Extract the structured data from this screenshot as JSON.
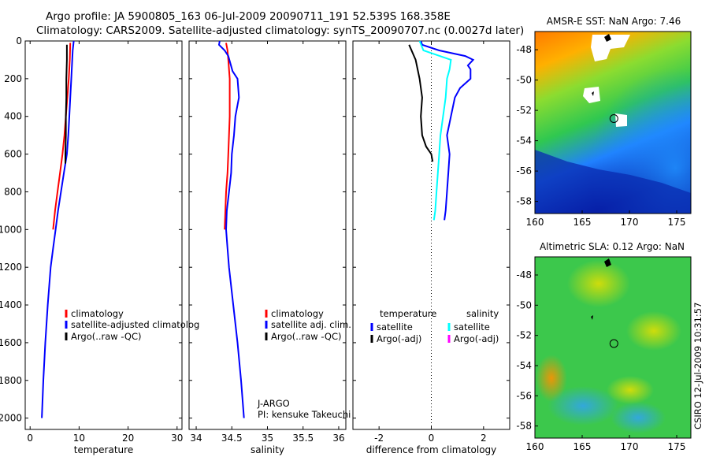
{
  "header": {
    "line1": "Argo profile: JA 5900805_163 06-Jul-2009 20090711_191 52.539S 168.358E",
    "line2": "Climatology: CARS2009. Satellite-adjusted climatology: synTS_20090707.nc (0.0027d later)"
  },
  "colors": {
    "red": "#ff0000",
    "blue": "#0000ff",
    "black": "#000000",
    "cyan": "#00ffff",
    "magenta": "#ff00ff"
  },
  "chart_data": [
    {
      "id": "temperature",
      "type": "line",
      "xlabel": "temperature",
      "ylabel": "",
      "xlim": [
        -1,
        31
      ],
      "ylim": [
        2060,
        0
      ],
      "y_reversed": true,
      "xticks": [
        0,
        10,
        20,
        30
      ],
      "yticks": [
        0,
        200,
        400,
        600,
        800,
        1000,
        1200,
        1400,
        1600,
        1800,
        2000
      ],
      "legend": [
        "climatology",
        "satellite-adjusted climatolog",
        "Argo(..raw -QC)"
      ],
      "legend_colors": [
        "#ff0000",
        "#0000ff",
        "#000000"
      ],
      "series": [
        {
          "name": "climatology",
          "color": "#ff0000",
          "depth": [
            10,
            100,
            200,
            300,
            400,
            500,
            600,
            700,
            800,
            900,
            1000
          ],
          "values": [
            8.2,
            8.1,
            7.9,
            7.6,
            7.3,
            7.0,
            6.6,
            6.1,
            5.6,
            5.1,
            4.7
          ]
        },
        {
          "name": "satellite-adjusted climatolog",
          "color": "#0000ff",
          "depth": [
            0,
            50,
            100,
            200,
            300,
            400,
            500,
            600,
            700,
            800,
            900,
            1000,
            1100,
            1200,
            1400,
            1600,
            1800,
            2000
          ],
          "values": [
            8.9,
            8.7,
            8.6,
            8.4,
            8.2,
            8.0,
            7.8,
            7.5,
            6.9,
            6.3,
            5.7,
            5.2,
            4.7,
            4.2,
            3.6,
            3.1,
            2.7,
            2.4
          ]
        },
        {
          "name": "Argo(..raw -QC)",
          "color": "#000000",
          "depth": [
            20,
            100,
            200,
            300,
            400,
            500,
            600,
            650
          ],
          "values": [
            7.5,
            7.5,
            7.4,
            7.4,
            7.3,
            7.3,
            7.2,
            7.2
          ]
        }
      ]
    },
    {
      "id": "salinity",
      "type": "line",
      "xlabel": "salinity",
      "xlim": [
        33.9,
        36.1
      ],
      "ylim": [
        2060,
        0
      ],
      "y_reversed": true,
      "xticks": [
        34,
        34.5,
        35,
        35.5,
        36
      ],
      "legend": [
        "climatology",
        "satellite adj. clim.",
        "Argo(..raw -QC)"
      ],
      "legend_colors": [
        "#ff0000",
        "#0000ff",
        "#000000"
      ],
      "annotation": [
        "J-ARGO",
        "PI: kensuke Takeuchi"
      ],
      "series": [
        {
          "name": "climatology",
          "color": "#ff0000",
          "depth": [
            10,
            50,
            100,
            200,
            300,
            400,
            500,
            600,
            700,
            800,
            900,
            1000
          ],
          "values": [
            34.42,
            34.44,
            34.45,
            34.47,
            34.47,
            34.47,
            34.46,
            34.45,
            34.44,
            34.42,
            34.41,
            34.4
          ]
        },
        {
          "name": "satellite adj. clim.",
          "color": "#0000ff",
          "depth": [
            0,
            20,
            50,
            80,
            120,
            160,
            200,
            300,
            400,
            500,
            600,
            700,
            800,
            900,
            1000,
            1100,
            1200,
            1400,
            1600,
            1800,
            2000
          ],
          "values": [
            34.33,
            34.32,
            34.4,
            34.45,
            34.48,
            34.51,
            34.58,
            34.6,
            34.55,
            34.53,
            34.5,
            34.49,
            34.46,
            34.43,
            34.42,
            34.44,
            34.46,
            34.52,
            34.58,
            34.63,
            34.67
          ]
        },
        {
          "name": "Argo(..raw -QC)",
          "color": "#000000",
          "depth": [],
          "values": []
        }
      ]
    },
    {
      "id": "difference",
      "type": "line",
      "xlabel": "difference from climatology",
      "xlim": [
        -3,
        3
      ],
      "ylim": [
        2060,
        0
      ],
      "y_reversed": true,
      "xticks": [
        -2,
        0,
        2
      ],
      "zero_line": true,
      "legend_groups": [
        {
          "heading": "temperature",
          "items": [
            "satellite",
            "Argo(-adj)"
          ],
          "colors": [
            "#0000ff",
            "#000000"
          ]
        },
        {
          "heading": "salinity",
          "items": [
            "satellite",
            "Argo(-adj)"
          ],
          "colors": [
            "#00ffff",
            "#ff00ff"
          ]
        }
      ],
      "series": [
        {
          "name": "temperature satellite",
          "color": "#0000ff",
          "depth": [
            0,
            20,
            50,
            80,
            100,
            130,
            150,
            200,
            250,
            300,
            400,
            500,
            600,
            700,
            800,
            900,
            950
          ],
          "values": [
            -0.4,
            -0.35,
            0.3,
            1.3,
            1.6,
            1.4,
            1.5,
            1.5,
            1.1,
            0.9,
            0.75,
            0.6,
            0.7,
            0.65,
            0.6,
            0.55,
            0.5
          ]
        },
        {
          "name": "salinity satellite",
          "color": "#00ffff",
          "depth": [
            0,
            50,
            100,
            150,
            200,
            300,
            400,
            500,
            600,
            700,
            800,
            900,
            950
          ],
          "values": [
            -0.45,
            -0.3,
            0.75,
            0.7,
            0.6,
            0.55,
            0.45,
            0.35,
            0.3,
            0.25,
            0.2,
            0.15,
            0.1
          ]
        },
        {
          "name": "temperature Argo(-adj)",
          "color": "#000000",
          "depth": [
            20,
            100,
            200,
            300,
            400,
            500,
            560,
            600,
            640
          ],
          "values": [
            -0.85,
            -0.6,
            -0.45,
            -0.35,
            -0.4,
            -0.35,
            -0.2,
            0.0,
            0.05
          ]
        }
      ]
    },
    {
      "id": "sst-map",
      "type": "heatmap",
      "title": "AMSR-E SST: NaN Argo: 7.46",
      "xlim": [
        160,
        176.5
      ],
      "ylim": [
        -58.8,
        -46.8
      ],
      "xticks": [
        160,
        165,
        170,
        175
      ],
      "yticks": [
        -48,
        -50,
        -52,
        -54,
        -56,
        -58
      ],
      "float_position": [
        168.36,
        -52.54
      ]
    },
    {
      "id": "sla-map",
      "type": "heatmap",
      "title": "Altimetric SLA: 0.12 Argo: NaN",
      "xlim": [
        160,
        176.5
      ],
      "ylim": [
        -58.8,
        -46.8
      ],
      "xticks": [
        160,
        165,
        170,
        175
      ],
      "yticks": [
        -48,
        -50,
        -52,
        -54,
        -56,
        -58
      ],
      "float_position": [
        168.36,
        -52.54
      ]
    }
  ],
  "footer": {
    "stamp": "CSIRO 12-Jul-2009 10:31:57"
  }
}
